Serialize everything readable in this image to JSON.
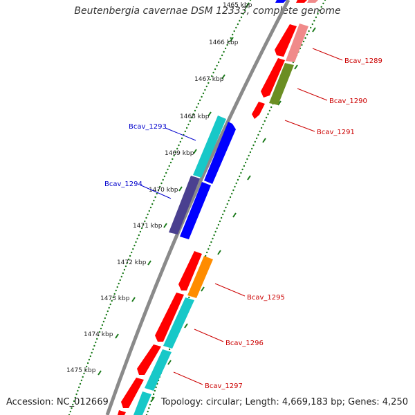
{
  "title": "Beutenbergia cavernae DSM 12333, complete genome",
  "accession": "Accession: NC_012669",
  "topology": "Topology: circular; Length: 4,669,183 bp; Genes: 4,250",
  "ticks": [
    "1465 kbp",
    "1466 kbp",
    "1467 kbp",
    "1468 kbp",
    "1469 kbp",
    "1470 kbp",
    "1471 kbp",
    "1472 kbp",
    "1473 kbp",
    "1474 kbp",
    "1475 kbp"
  ],
  "gene_labels": [
    {
      "text": "Bcav_1289",
      "color": "#cc0000"
    },
    {
      "text": "Bcav_1290",
      "color": "#cc0000"
    },
    {
      "text": "Bcav_1291",
      "color": "#cc0000"
    },
    {
      "text": "Bcav_1293",
      "color": "#0000cc"
    },
    {
      "text": "Bcav_1294",
      "color": "#0000cc"
    },
    {
      "text": "Bcav_1295",
      "color": "#cc0000"
    },
    {
      "text": "Bcav_1296",
      "color": "#cc0000"
    },
    {
      "text": "Bcav_1297",
      "color": "#cc0000"
    }
  ],
  "colors": {
    "backbone": "#8a8a8a",
    "tick_dots": "#1a7a1a",
    "red": "#ff0000",
    "pink": "#f08a8a",
    "olive": "#6b8e23",
    "cyan": "#17c8c8",
    "blue": "#0000ff",
    "navy": "#4a4090",
    "orange": "#ff8c00"
  }
}
